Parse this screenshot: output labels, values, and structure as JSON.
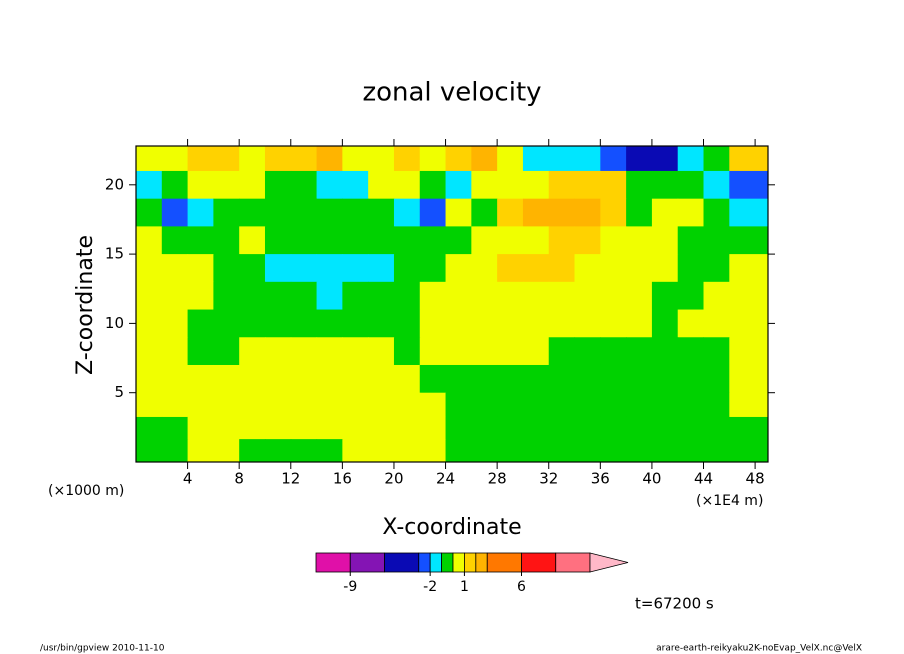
{
  "chart_data": {
    "type": "contour",
    "title": "zonal velocity",
    "x_label": "X-coordinate",
    "y_label": "Z-coordinate",
    "x_unit": "(×1E4 m)",
    "y_unit": "(×1000 m)",
    "time_label": "t=67200 s",
    "footer_left": "/usr/bin/gpview  2010-11-10",
    "footer_right": "arare-earth-reikyaku2K-noEvap_VelX.nc@VelX",
    "xlim": [
      0,
      49
    ],
    "ylim": [
      0,
      22.8
    ],
    "xticks": [
      4,
      8,
      12,
      16,
      20,
      24,
      28,
      32,
      36,
      40,
      44,
      48
    ],
    "yticks": [
      5,
      10,
      15,
      20
    ],
    "x": [
      1,
      3,
      5,
      7,
      9,
      11,
      13,
      15,
      17,
      19,
      21,
      23,
      25,
      27,
      29,
      31,
      33,
      35,
      37,
      39,
      41,
      43,
      45,
      47
    ],
    "y": [
      22,
      20,
      18,
      16,
      14,
      12,
      10,
      8,
      6,
      4,
      2.5,
      0.8
    ],
    "z": [
      [
        0.5,
        0.5,
        1.5,
        1.5,
        0.5,
        1.5,
        1.5,
        2.5,
        0.5,
        0.5,
        1.5,
        0.5,
        1.5,
        2.5,
        0.5,
        -1.5,
        -1.5,
        -1.5,
        -2.5,
        -4,
        -4,
        -1.5,
        -0.5,
        1.5
      ],
      [
        -1.5,
        -0.5,
        0.5,
        0.5,
        0.5,
        -0.5,
        -0.5,
        -1.5,
        -1.5,
        0.5,
        0.5,
        -0.5,
        -1.5,
        0.5,
        0.5,
        0.5,
        1.5,
        1.5,
        1.5,
        -0.5,
        -0.5,
        -0.5,
        -1.5,
        -2.5
      ],
      [
        -0.5,
        -2.5,
        -1.5,
        -0.5,
        -0.5,
        -0.5,
        -0.5,
        -0.5,
        -0.5,
        -0.5,
        -1.5,
        -2.5,
        0.5,
        -0.5,
        1.5,
        2.5,
        2.5,
        2.5,
        1.5,
        -0.5,
        0.5,
        0.5,
        -0.5,
        -1.5
      ],
      [
        0.5,
        -0.5,
        -0.5,
        -0.5,
        0.5,
        -0.5,
        -0.5,
        -0.5,
        -0.5,
        -0.5,
        -0.5,
        -0.5,
        -0.5,
        0.5,
        0.5,
        0.5,
        1.5,
        1.5,
        0.5,
        0.5,
        0.5,
        -0.5,
        -0.5,
        -0.5
      ],
      [
        0.5,
        0.5,
        0.5,
        -0.5,
        -0.5,
        -1.5,
        -1.5,
        -1.5,
        -1.5,
        -1.5,
        -0.5,
        -0.5,
        0.5,
        0.5,
        1.5,
        1.5,
        1.5,
        0.5,
        0.5,
        0.5,
        0.5,
        -0.5,
        -0.5,
        0.5
      ],
      [
        0.5,
        0.5,
        0.5,
        -0.5,
        -0.5,
        -0.5,
        -0.5,
        -1.5,
        -0.5,
        -0.5,
        -0.5,
        0.5,
        0.5,
        0.5,
        0.5,
        0.5,
        0.5,
        0.5,
        0.5,
        0.5,
        -0.5,
        -0.5,
        0.5,
        0.5
      ],
      [
        0.5,
        0.5,
        -0.5,
        -0.5,
        -0.5,
        -0.5,
        -0.5,
        -0.5,
        -0.5,
        -0.5,
        -0.5,
        0.5,
        0.5,
        0.5,
        0.5,
        0.5,
        0.5,
        0.5,
        0.5,
        0.5,
        -0.5,
        0.5,
        0.5,
        0.5
      ],
      [
        0.5,
        0.5,
        -0.5,
        -0.5,
        0.5,
        0.5,
        0.5,
        0.5,
        0.5,
        0.5,
        -0.5,
        0.5,
        0.5,
        0.5,
        0.5,
        0.5,
        -0.5,
        -0.5,
        -0.5,
        -0.5,
        -0.5,
        -0.5,
        -0.5,
        0.5
      ],
      [
        0.5,
        0.5,
        0.5,
        0.5,
        0.5,
        0.5,
        0.5,
        0.5,
        0.5,
        0.5,
        0.5,
        -0.5,
        -0.5,
        -0.5,
        -0.5,
        -0.5,
        -0.5,
        -0.5,
        -0.5,
        -0.5,
        -0.5,
        -0.5,
        -0.5,
        0.5
      ],
      [
        0.5,
        0.5,
        0.5,
        0.5,
        0.5,
        0.5,
        0.5,
        0.5,
        0.5,
        0.5,
        0.5,
        0.5,
        -0.5,
        -0.5,
        -0.5,
        -0.5,
        -0.5,
        -0.5,
        -0.5,
        -0.5,
        -0.5,
        -0.5,
        -0.5,
        0.5
      ],
      [
        -0.5,
        -0.5,
        0.5,
        0.5,
        0.5,
        0.5,
        0.5,
        0.5,
        0.5,
        0.5,
        0.5,
        0.5,
        -0.5,
        -0.5,
        -0.5,
        -0.5,
        -0.5,
        -0.5,
        -0.5,
        -0.5,
        -0.5,
        -0.5,
        -0.5,
        -0.5
      ],
      [
        -0.5,
        -0.5,
        0.5,
        0.5,
        -0.5,
        -0.5,
        -0.5,
        -0.5,
        0.5,
        0.5,
        0.5,
        0.5,
        -0.5,
        -0.5,
        -0.5,
        -0.5,
        -0.5,
        -0.5,
        -0.5,
        -0.5,
        -0.5,
        -0.5,
        -0.5,
        -0.5
      ]
    ],
    "colorbar": {
      "levels": [
        -12,
        -9,
        -6,
        -3,
        -2,
        -1,
        0,
        1,
        2,
        3,
        6,
        9,
        12
      ],
      "colors": [
        "#e010a8",
        "#8414b4",
        "#0a0ab4",
        "#1450ff",
        "#00e6ff",
        "#00d200",
        "#f0ff00",
        "#ffd200",
        "#ffb400",
        "#ff7800",
        "#ff1414",
        "#ff7080"
      ],
      "extend_color": "#ffb8c8",
      "ticks": [
        -9,
        -2,
        1,
        6
      ]
    }
  }
}
